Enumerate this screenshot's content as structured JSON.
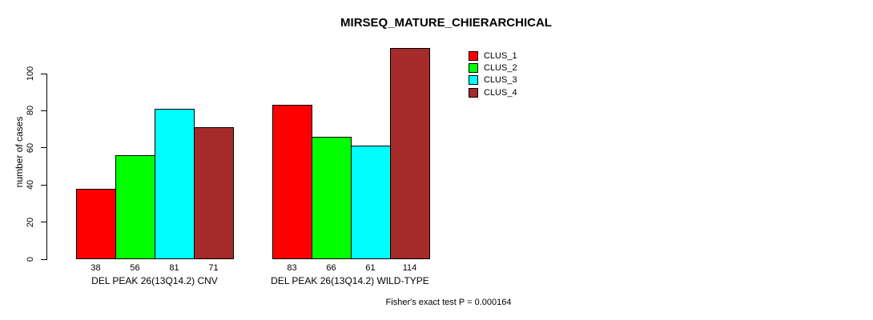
{
  "chart_data": {
    "type": "bar",
    "title": "MIRSEQ_MATURE_CHIERARCHICAL",
    "ylabel": "number of cases",
    "xlabel": "",
    "ylim": [
      0,
      115
    ],
    "yticks": [
      0,
      20,
      40,
      60,
      80,
      100
    ],
    "grid": false,
    "legend_position": "top-right-outside-plot",
    "bar_border_color": "#000000",
    "background_color": "#ffffff",
    "series": [
      {
        "name": "CLUS_1",
        "color": "#ff0000"
      },
      {
        "name": "CLUS_2",
        "color": "#00ff00"
      },
      {
        "name": "CLUS_3",
        "color": "#00ffff"
      },
      {
        "name": "CLUS_4",
        "color": "#a52a2a"
      }
    ],
    "groups": [
      {
        "label": "DEL PEAK 26(13Q14.2) CNV",
        "values": [
          38,
          56,
          81,
          71
        ]
      },
      {
        "label": "DEL PEAK 26(13Q14.2) WILD-TYPE",
        "values": [
          83,
          66,
          61,
          114
        ]
      }
    ],
    "value_labels_shown": true,
    "annotation": "Fisher's exact test P = 0.000164"
  }
}
